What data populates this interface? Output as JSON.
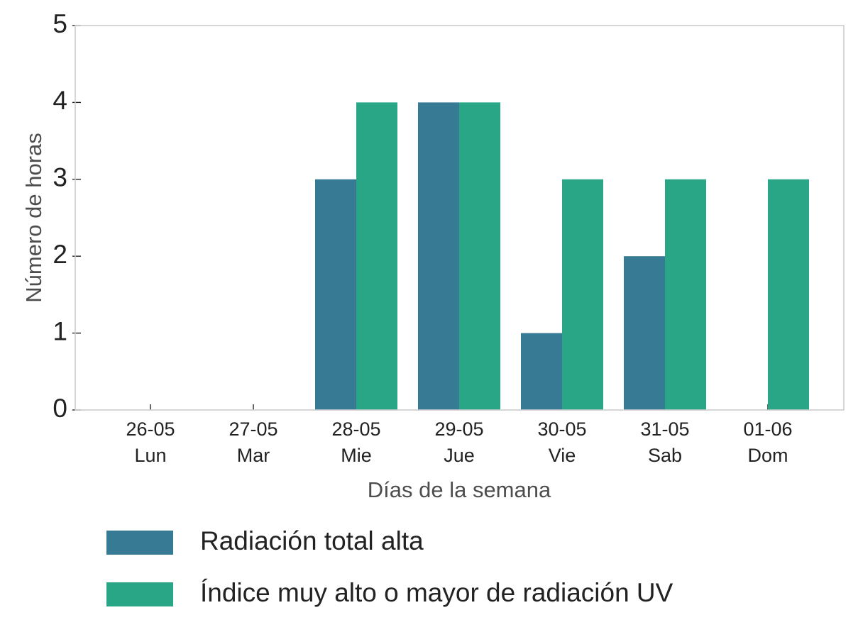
{
  "chart_data": {
    "type": "bar",
    "title": "",
    "xlabel": "Días de la semana",
    "ylabel": "Número de horas",
    "ylim": [
      0,
      5
    ],
    "yticks": [
      "0",
      "1",
      "2",
      "3",
      "4",
      "5"
    ],
    "grid": false,
    "legend_position": "bottom",
    "categories": [
      {
        "date": "26-05",
        "day": "Lun"
      },
      {
        "date": "27-05",
        "day": "Mar"
      },
      {
        "date": "28-05",
        "day": "Mie"
      },
      {
        "date": "29-05",
        "day": "Jue"
      },
      {
        "date": "30-05",
        "day": "Vie"
      },
      {
        "date": "31-05",
        "day": "Sab"
      },
      {
        "date": "01-06",
        "day": "Dom"
      }
    ],
    "series": [
      {
        "name": "Radiación total alta",
        "color": "#377a93",
        "values": [
          0,
          0,
          3,
          4,
          1,
          2,
          0
        ]
      },
      {
        "name": "Índice muy alto o mayor de radiación UV",
        "color": "#29a685",
        "values": [
          0,
          0,
          4,
          4,
          3,
          3,
          3
        ]
      }
    ],
    "colors": {
      "axis_frame": "#cccccc",
      "tick_text": "#222222",
      "label_text": "#4d4d4d"
    }
  }
}
